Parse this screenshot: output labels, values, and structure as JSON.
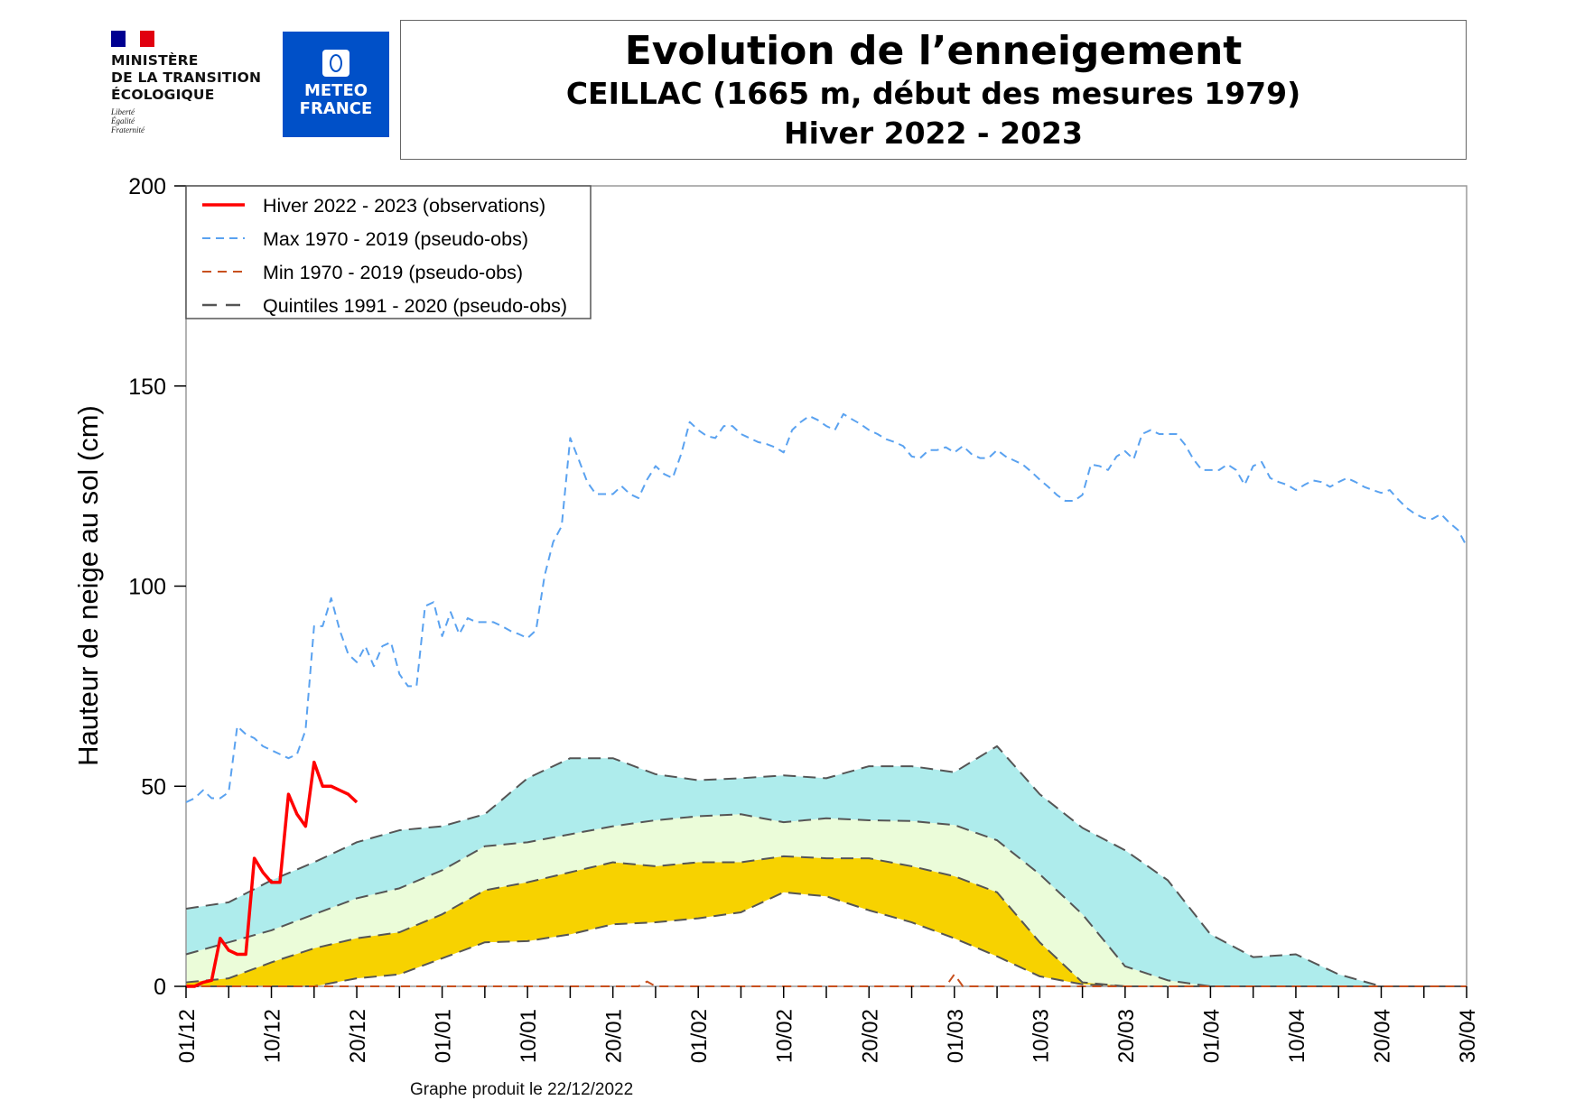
{
  "logos": {
    "ministry": {
      "name": "MINISTÈRE\nDE LA TRANSITION\nÉCOLOGIQUE",
      "line1": "MINISTÈRE",
      "line2": "DE LA TRANSITION",
      "line3": "ÉCOLOGIQUE",
      "motto1": "Liberté",
      "motto2": "Égalité",
      "motto3": "Fraternité"
    },
    "meteofrance": {
      "line1": "METEO",
      "line2": "FRANCE"
    }
  },
  "header": {
    "title": "Evolution de l’enneigement",
    "subtitle": "CEILLAC (1665 m, début des mesures 1979)",
    "season": "Hiver 2022 - 2023"
  },
  "footer": {
    "produced": "Graphe produit le 22/12/2022"
  },
  "colors": {
    "observations": "#ff0000",
    "max": "#5aa2f0",
    "min": "#c8501e",
    "quintiles": "#555555",
    "band_q60_q80": "#aeecec",
    "band_q40_q60": "#ebfcd9",
    "band_q20_q40": "#f7d200"
  },
  "chart_data": {
    "type": "line",
    "title": "Evolution de l’enneigement",
    "ylabel": "Hauteur de neige au sol (cm)",
    "xlabel": "",
    "ylim": [
      0,
      200
    ],
    "yticks": [
      "0",
      "50",
      "100",
      "150",
      "200"
    ],
    "x_start": "01/12",
    "x_end": "30/04",
    "xtick_labels": [
      "01/12",
      "10/12",
      "20/12",
      "01/01",
      "10/01",
      "20/01",
      "01/02",
      "10/02",
      "20/02",
      "01/03",
      "10/03",
      "20/03",
      "01/04",
      "10/04",
      "20/04",
      "30/04"
    ],
    "grid": false,
    "legend_position": "top-left",
    "legend": [
      {
        "key": "obs",
        "label": "Hiver 2022 - 2023 (observations)"
      },
      {
        "key": "max",
        "label": "Max 1970 - 2019 (pseudo-obs)"
      },
      {
        "key": "min",
        "label": "Min 1970 - 2019 (pseudo-obs)"
      },
      {
        "key": "quintiles",
        "label": "Quintiles 1991 - 2020 (pseudo-obs)"
      }
    ],
    "series": {
      "observations_daily_from_01_12": [
        0,
        0,
        1,
        1.5,
        12,
        9,
        8,
        8,
        32,
        28.5,
        26,
        26,
        48,
        43,
        40,
        56,
        50,
        50,
        49,
        48,
        46
      ],
      "max_daily": [
        46,
        47,
        49,
        47,
        47,
        48.5,
        65,
        63,
        62,
        60,
        59,
        58,
        57,
        58,
        64,
        90,
        90,
        97,
        89,
        83,
        81,
        85,
        80,
        85,
        86,
        78,
        75,
        75,
        95,
        96,
        87.5,
        93.5,
        88,
        92,
        91,
        91,
        91,
        90,
        88.8,
        88,
        87,
        89,
        102.6,
        111,
        115,
        137,
        131.6,
        126,
        123,
        123,
        123,
        125,
        123,
        122,
        126.6,
        130,
        128,
        127,
        133,
        141,
        139,
        137.5,
        137,
        140,
        140,
        138,
        137,
        136,
        135.5,
        134.7,
        133.4,
        139,
        141,
        142.5,
        141.5,
        140,
        139,
        143,
        141.7,
        140.5,
        139,
        138,
        136.7,
        136,
        135,
        132.4,
        132,
        134,
        134,
        134.7,
        133.4,
        135,
        133,
        132,
        132,
        134,
        132.4,
        131.4,
        130.4,
        128.6,
        126.6,
        124.8,
        122.8,
        121.3,
        121.3,
        122.8,
        130.4,
        130,
        129,
        132.4,
        133.7,
        131.7,
        138,
        139,
        138,
        138,
        138,
        135.4,
        131.7,
        129,
        129,
        129,
        130.4,
        129,
        125.3,
        130,
        131,
        127,
        126,
        125.3,
        124,
        125.3,
        126.4,
        126,
        124.8,
        126,
        127,
        126,
        124.8,
        124,
        123.3,
        124,
        121.6,
        119.5,
        118,
        117,
        116.8,
        118,
        115.8,
        114,
        110
      ],
      "min_daily": [
        0,
        0,
        0,
        0,
        0,
        0,
        0,
        0,
        0,
        0,
        0,
        0,
        0,
        0,
        0,
        0,
        0,
        0,
        0,
        0,
        0,
        0,
        0,
        0,
        0,
        0,
        0,
        0,
        0,
        0,
        0,
        0,
        0,
        0,
        0,
        0,
        0,
        0,
        0,
        0,
        0,
        0,
        0,
        0,
        0,
        0,
        0,
        0,
        0,
        0,
        0,
        0,
        0,
        0,
        1.2,
        0,
        0,
        0,
        0,
        0,
        0,
        0,
        0,
        0,
        0,
        0,
        0,
        0,
        0,
        0,
        0,
        0,
        0,
        0,
        0,
        0,
        0,
        0,
        0,
        0,
        0,
        0,
        0,
        0,
        0,
        0,
        0,
        0,
        0,
        0,
        3,
        0,
        0,
        0,
        0,
        0,
        0,
        0,
        0,
        0,
        0,
        0,
        0,
        0,
        0,
        0,
        0,
        0,
        0,
        0,
        0,
        0,
        0,
        0,
        0,
        0,
        0,
        0,
        0,
        0,
        0,
        0,
        0,
        0,
        0,
        0,
        0,
        0,
        0,
        0,
        0,
        0,
        0,
        0,
        0,
        0,
        0,
        0,
        0,
        0,
        0,
        0,
        0,
        0,
        0,
        0,
        0,
        0,
        0,
        0,
        0
      ],
      "quintiles_every_5_days": {
        "q80": [
          19.4,
          21,
          26.5,
          31,
          36,
          39,
          40,
          43,
          52,
          57,
          57,
          53,
          51.5,
          52,
          52.7,
          52,
          55,
          55,
          53.5,
          60,
          48,
          39.6,
          34,
          26.5,
          13,
          7.3,
          8,
          3,
          0,
          0,
          0
        ],
        "q60": [
          8,
          11,
          14,
          18,
          22,
          24.5,
          29,
          35,
          36,
          38,
          40,
          41.5,
          42.5,
          43,
          41,
          42,
          41.5,
          41.3,
          40.3,
          36.5,
          28,
          18,
          5,
          1.5,
          0,
          0,
          0,
          0,
          0,
          0,
          0
        ],
        "q40": [
          1,
          2,
          6,
          9.5,
          12,
          13.5,
          18,
          24,
          26,
          28.5,
          31,
          30,
          31,
          31,
          32.5,
          32,
          32,
          30,
          27.5,
          23.5,
          11,
          1,
          0,
          0,
          0,
          0,
          0,
          0,
          0,
          0,
          0
        ],
        "q20": [
          0,
          0,
          0,
          0,
          2,
          3,
          7,
          11,
          11.3,
          13,
          15.5,
          16,
          17,
          18.5,
          23.5,
          22.5,
          19,
          16,
          12,
          7.5,
          2.5,
          0.5,
          0,
          0,
          0,
          0,
          0,
          0,
          0,
          0,
          0
        ]
      }
    }
  }
}
